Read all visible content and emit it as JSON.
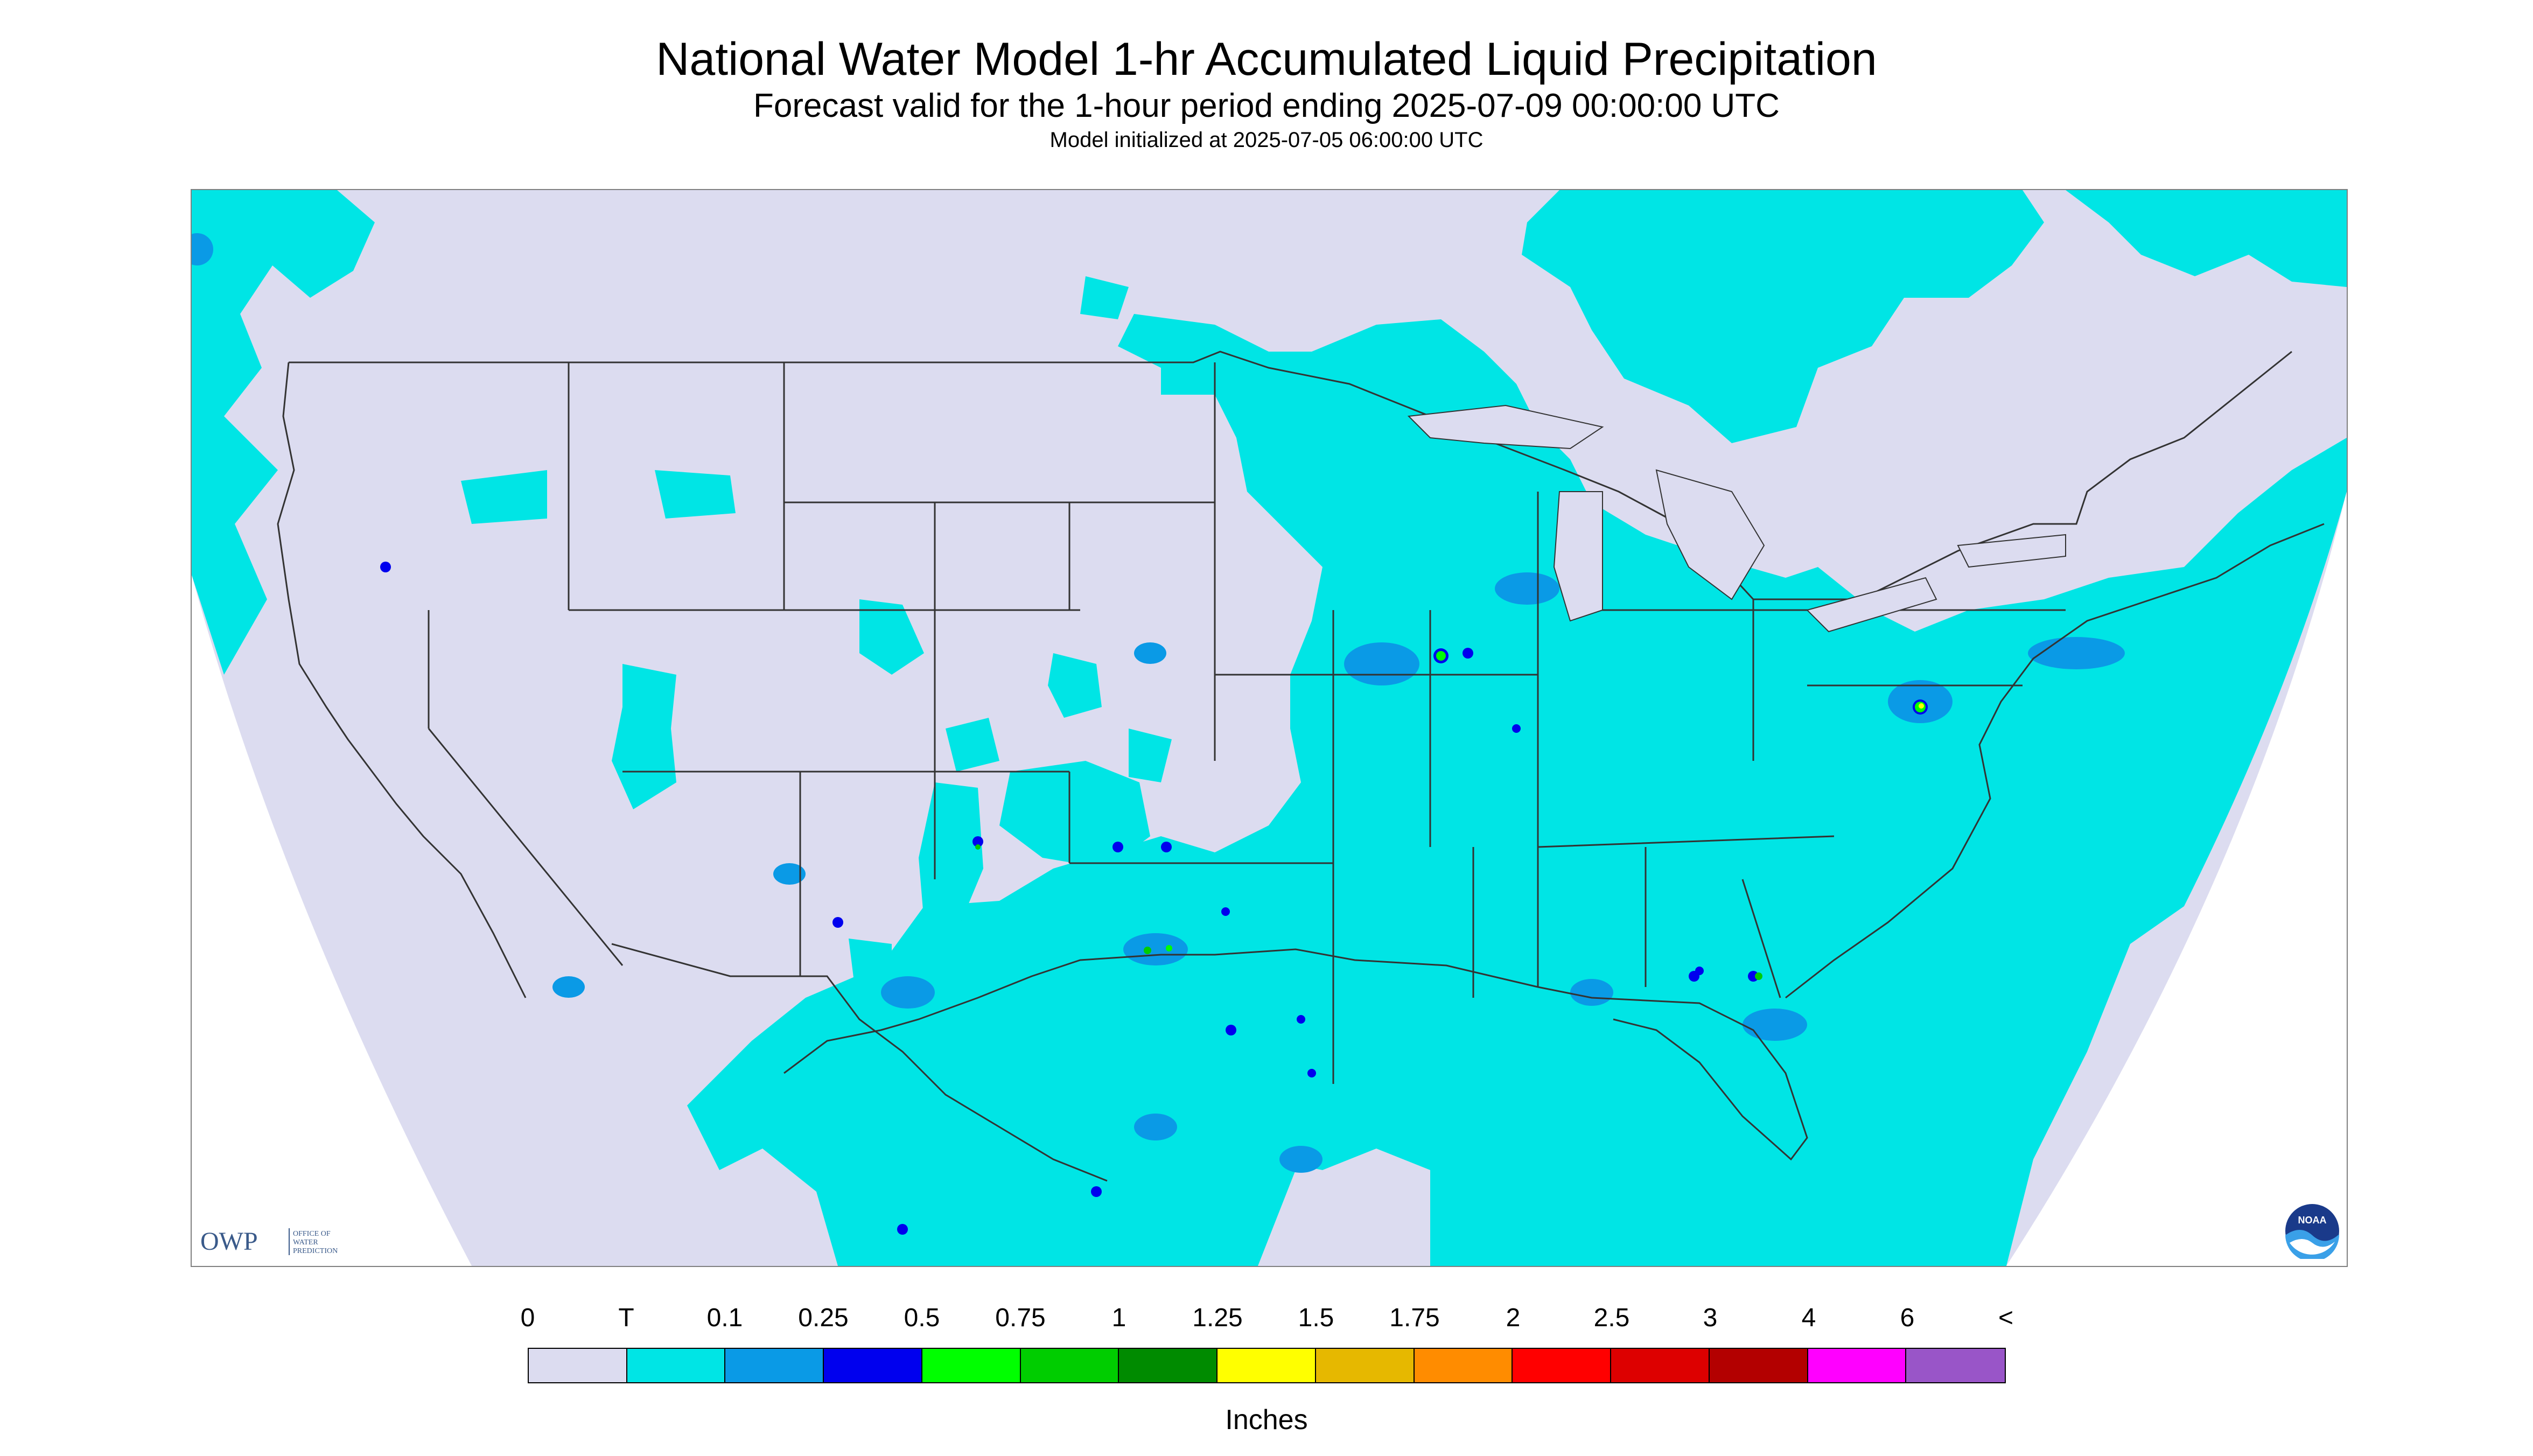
{
  "header": {
    "title": "National Water Model 1-hr Accumulated Liquid Precipitation",
    "subtitle": "Forecast valid for the 1-hour period ending 2025-07-09 00:00:00 UTC",
    "model_init": "Model initialized at 2025-07-05 06:00:00 UTC"
  },
  "logos": {
    "owp_mark": "OWP",
    "owp_text_line1": "OFFICE OF",
    "owp_text_line2": "WATER",
    "owp_text_line3": "PREDICTION",
    "noaa_mark": "NOAA"
  },
  "legend": {
    "tick_labels": [
      "0",
      "T",
      "0.1",
      "0.25",
      "0.5",
      "0.75",
      "1",
      "1.25",
      "1.5",
      "1.75",
      "2",
      "2.5",
      "3",
      "4",
      "6",
      "<"
    ],
    "colors": [
      "#dcdcf0",
      "#00e5e5",
      "#0a9ae6",
      "#0000ee",
      "#00ff00",
      "#00cd00",
      "#008b00",
      "#ffff00",
      "#e6b800",
      "#ff8c00",
      "#ff0000",
      "#dd0000",
      "#b30000",
      "#ff00ff",
      "#9955c8"
    ],
    "units": "Inches"
  },
  "map": {
    "no_data_color": "#dcdcf0",
    "outside_domain_color": "#ffffff",
    "boundary_color": "#333333"
  }
}
